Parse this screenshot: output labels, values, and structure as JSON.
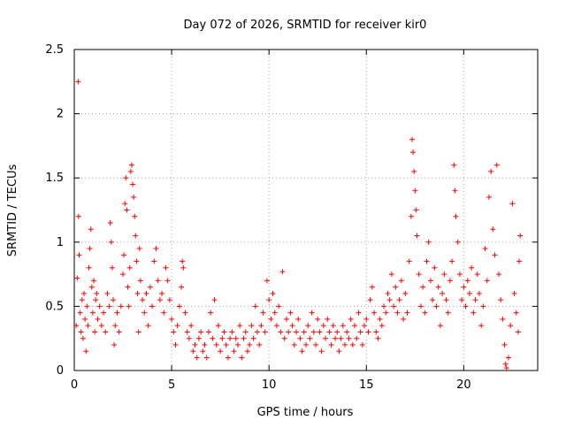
{
  "chart_data": {
    "type": "scatter",
    "title": "Day 072 of 2026, SRMTID for receiver kir0",
    "xlabel": "GPS time / hours",
    "ylabel": "SRMTID / TECUs",
    "xlim": [
      0,
      23.8
    ],
    "ylim": [
      0,
      2.5
    ],
    "xticks": [
      0,
      5,
      10,
      15,
      20
    ],
    "xtick_labels": [
      "0",
      "5",
      "10",
      "15",
      "20"
    ],
    "yticks": [
      0,
      0.5,
      1,
      1.5,
      2,
      2.5
    ],
    "ytick_labels": [
      "0",
      "0.5",
      "1",
      "1.5",
      "2",
      "2.5"
    ],
    "grid": true,
    "marker": "+",
    "color": "#ff0000",
    "series": [
      {
        "name": "SRMTID",
        "points": [
          [
            0.1,
            0.35
          ],
          [
            0.15,
            0.72
          ],
          [
            0.2,
            2.25
          ],
          [
            0.22,
            1.2
          ],
          [
            0.25,
            0.9
          ],
          [
            0.3,
            0.45
          ],
          [
            0.35,
            0.3
          ],
          [
            0.4,
            0.55
          ],
          [
            0.45,
            0.25
          ],
          [
            0.5,
            0.6
          ],
          [
            0.55,
            0.4
          ],
          [
            0.6,
            0.15
          ],
          [
            0.65,
            0.5
          ],
          [
            0.7,
            0.35
          ],
          [
            0.75,
            0.8
          ],
          [
            0.8,
            0.95
          ],
          [
            0.85,
            1.1
          ],
          [
            0.9,
            0.65
          ],
          [
            0.95,
            0.45
          ],
          [
            1.0,
            0.7
          ],
          [
            1.05,
            0.3
          ],
          [
            1.1,
            0.55
          ],
          [
            1.15,
            0.6
          ],
          [
            1.2,
            0.4
          ],
          [
            1.3,
            0.5
          ],
          [
            1.4,
            0.35
          ],
          [
            1.5,
            0.45
          ],
          [
            1.6,
            0.3
          ],
          [
            1.7,
            0.6
          ],
          [
            1.8,
            0.5
          ],
          [
            1.85,
            1.15
          ],
          [
            1.9,
            1.0
          ],
          [
            1.95,
            0.8
          ],
          [
            2.0,
            0.55
          ],
          [
            2.05,
            0.2
          ],
          [
            2.1,
            0.35
          ],
          [
            2.2,
            0.45
          ],
          [
            2.3,
            0.3
          ],
          [
            2.4,
            0.5
          ],
          [
            2.5,
            0.75
          ],
          [
            2.55,
            0.9
          ],
          [
            2.6,
            1.3
          ],
          [
            2.65,
            1.5
          ],
          [
            2.7,
            1.25
          ],
          [
            2.75,
            0.65
          ],
          [
            2.8,
            0.5
          ],
          [
            2.85,
            0.8
          ],
          [
            2.9,
            1.55
          ],
          [
            2.95,
            1.6
          ],
          [
            3.0,
            1.45
          ],
          [
            3.05,
            1.35
          ],
          [
            3.1,
            1.2
          ],
          [
            3.15,
            1.05
          ],
          [
            3.2,
            0.85
          ],
          [
            3.25,
            0.6
          ],
          [
            3.3,
            0.3
          ],
          [
            3.35,
            0.95
          ],
          [
            3.4,
            0.7
          ],
          [
            3.5,
            0.55
          ],
          [
            3.6,
            0.45
          ],
          [
            3.7,
            0.6
          ],
          [
            3.8,
            0.35
          ],
          [
            3.9,
            0.65
          ],
          [
            4.0,
            0.5
          ],
          [
            4.1,
            0.85
          ],
          [
            4.2,
            0.95
          ],
          [
            4.3,
            0.7
          ],
          [
            4.4,
            0.55
          ],
          [
            4.5,
            0.6
          ],
          [
            4.6,
            0.45
          ],
          [
            4.7,
            0.8
          ],
          [
            4.8,
            0.7
          ],
          [
            4.9,
            0.55
          ],
          [
            5.0,
            0.4
          ],
          [
            5.1,
            0.3
          ],
          [
            5.2,
            0.2
          ],
          [
            5.3,
            0.35
          ],
          [
            5.4,
            0.5
          ],
          [
            5.5,
            0.65
          ],
          [
            5.55,
            0.85
          ],
          [
            5.6,
            0.8
          ],
          [
            5.7,
            0.45
          ],
          [
            5.8,
            0.3
          ],
          [
            5.9,
            0.25
          ],
          [
            6.0,
            0.35
          ],
          [
            6.1,
            0.15
          ],
          [
            6.2,
            0.2
          ],
          [
            6.3,
            0.1
          ],
          [
            6.4,
            0.25
          ],
          [
            6.5,
            0.3
          ],
          [
            6.6,
            0.15
          ],
          [
            6.7,
            0.2
          ],
          [
            6.8,
            0.1
          ],
          [
            6.9,
            0.3
          ],
          [
            7.0,
            0.45
          ],
          [
            7.1,
            0.25
          ],
          [
            7.2,
            0.55
          ],
          [
            7.3,
            0.2
          ],
          [
            7.4,
            0.35
          ],
          [
            7.5,
            0.15
          ],
          [
            7.6,
            0.25
          ],
          [
            7.7,
            0.3
          ],
          [
            7.8,
            0.2
          ],
          [
            7.9,
            0.1
          ],
          [
            8.0,
            0.25
          ],
          [
            8.1,
            0.3
          ],
          [
            8.2,
            0.15
          ],
          [
            8.3,
            0.25
          ],
          [
            8.4,
            0.2
          ],
          [
            8.5,
            0.35
          ],
          [
            8.6,
            0.1
          ],
          [
            8.7,
            0.25
          ],
          [
            8.8,
            0.3
          ],
          [
            8.9,
            0.15
          ],
          [
            9.0,
            0.2
          ],
          [
            9.1,
            0.35
          ],
          [
            9.2,
            0.25
          ],
          [
            9.3,
            0.5
          ],
          [
            9.4,
            0.3
          ],
          [
            9.5,
            0.2
          ],
          [
            9.6,
            0.35
          ],
          [
            9.7,
            0.45
          ],
          [
            9.8,
            0.3
          ],
          [
            9.9,
            0.7
          ],
          [
            10.0,
            0.55
          ],
          [
            10.1,
            0.4
          ],
          [
            10.2,
            0.6
          ],
          [
            10.3,
            0.45
          ],
          [
            10.4,
            0.35
          ],
          [
            10.5,
            0.5
          ],
          [
            10.6,
            0.3
          ],
          [
            10.7,
            0.77
          ],
          [
            10.8,
            0.25
          ],
          [
            10.9,
            0.4
          ],
          [
            11.0,
            0.3
          ],
          [
            11.1,
            0.45
          ],
          [
            11.2,
            0.35
          ],
          [
            11.3,
            0.2
          ],
          [
            11.4,
            0.3
          ],
          [
            11.5,
            0.4
          ],
          [
            11.6,
            0.25
          ],
          [
            11.7,
            0.15
          ],
          [
            11.8,
            0.3
          ],
          [
            11.9,
            0.2
          ],
          [
            12.0,
            0.35
          ],
          [
            12.1,
            0.25
          ],
          [
            12.2,
            0.45
          ],
          [
            12.3,
            0.3
          ],
          [
            12.4,
            0.2
          ],
          [
            12.5,
            0.4
          ],
          [
            12.6,
            0.3
          ],
          [
            12.7,
            0.15
          ],
          [
            12.8,
            0.35
          ],
          [
            12.9,
            0.25
          ],
          [
            13.0,
            0.4
          ],
          [
            13.1,
            0.3
          ],
          [
            13.2,
            0.2
          ],
          [
            13.3,
            0.35
          ],
          [
            13.4,
            0.25
          ],
          [
            13.5,
            0.3
          ],
          [
            13.6,
            0.15
          ],
          [
            13.7,
            0.25
          ],
          [
            13.8,
            0.35
          ],
          [
            13.9,
            0.2
          ],
          [
            14.0,
            0.3
          ],
          [
            14.1,
            0.25
          ],
          [
            14.2,
            0.4
          ],
          [
            14.3,
            0.2
          ],
          [
            14.4,
            0.35
          ],
          [
            14.5,
            0.25
          ],
          [
            14.6,
            0.45
          ],
          [
            14.7,
            0.3
          ],
          [
            14.8,
            0.2
          ],
          [
            14.9,
            0.35
          ],
          [
            15.0,
            0.4
          ],
          [
            15.1,
            0.3
          ],
          [
            15.2,
            0.55
          ],
          [
            15.3,
            0.65
          ],
          [
            15.4,
            0.45
          ],
          [
            15.5,
            0.3
          ],
          [
            15.6,
            0.25
          ],
          [
            15.7,
            0.4
          ],
          [
            15.8,
            0.35
          ],
          [
            15.9,
            0.5
          ],
          [
            16.0,
            0.45
          ],
          [
            16.1,
            0.6
          ],
          [
            16.2,
            0.55
          ],
          [
            16.3,
            0.75
          ],
          [
            16.4,
            0.5
          ],
          [
            16.5,
            0.65
          ],
          [
            16.6,
            0.45
          ],
          [
            16.7,
            0.55
          ],
          [
            16.8,
            0.7
          ],
          [
            16.9,
            0.4
          ],
          [
            17.0,
            0.6
          ],
          [
            17.1,
            0.45
          ],
          [
            17.2,
            0.85
          ],
          [
            17.3,
            1.2
          ],
          [
            17.35,
            1.8
          ],
          [
            17.4,
            1.7
          ],
          [
            17.45,
            1.55
          ],
          [
            17.5,
            1.4
          ],
          [
            17.55,
            1.25
          ],
          [
            17.6,
            1.05
          ],
          [
            17.7,
            0.75
          ],
          [
            17.8,
            0.5
          ],
          [
            17.9,
            0.65
          ],
          [
            18.0,
            0.45
          ],
          [
            18.1,
            0.85
          ],
          [
            18.2,
            1.0
          ],
          [
            18.3,
            0.7
          ],
          [
            18.4,
            0.55
          ],
          [
            18.5,
            0.8
          ],
          [
            18.6,
            0.5
          ],
          [
            18.7,
            0.65
          ],
          [
            18.8,
            0.35
          ],
          [
            18.9,
            0.6
          ],
          [
            19.0,
            0.75
          ],
          [
            19.1,
            0.55
          ],
          [
            19.2,
            0.45
          ],
          [
            19.3,
            0.7
          ],
          [
            19.4,
            0.85
          ],
          [
            19.5,
            1.6
          ],
          [
            19.55,
            1.4
          ],
          [
            19.6,
            1.2
          ],
          [
            19.7,
            1.0
          ],
          [
            19.8,
            0.75
          ],
          [
            19.9,
            0.55
          ],
          [
            20.0,
            0.65
          ],
          [
            20.1,
            0.5
          ],
          [
            20.2,
            0.7
          ],
          [
            20.3,
            0.6
          ],
          [
            20.4,
            0.8
          ],
          [
            20.5,
            0.45
          ],
          [
            20.6,
            0.55
          ],
          [
            20.7,
            0.75
          ],
          [
            20.8,
            0.6
          ],
          [
            20.9,
            0.35
          ],
          [
            21.0,
            0.5
          ],
          [
            21.1,
            0.95
          ],
          [
            21.2,
            0.7
          ],
          [
            21.3,
            1.35
          ],
          [
            21.4,
            1.55
          ],
          [
            21.5,
            1.1
          ],
          [
            21.6,
            0.9
          ],
          [
            21.7,
            1.6
          ],
          [
            21.8,
            0.75
          ],
          [
            21.9,
            0.55
          ],
          [
            22.0,
            0.4
          ],
          [
            22.1,
            0.2
          ],
          [
            22.15,
            0.05
          ],
          [
            22.2,
            0.02
          ],
          [
            22.3,
            0.1
          ],
          [
            22.4,
            0.35
          ],
          [
            22.5,
            1.3
          ],
          [
            22.6,
            0.6
          ],
          [
            22.7,
            0.45
          ],
          [
            22.8,
            0.3
          ],
          [
            22.85,
            0.85
          ],
          [
            22.9,
            1.05
          ]
        ]
      }
    ]
  }
}
